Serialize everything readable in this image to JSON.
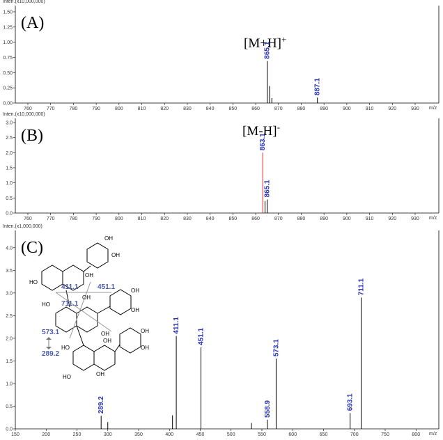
{
  "chart_data": [
    {
      "type": "spectrum",
      "panel_label": "(A)",
      "annotation": {
        "text": "[M+H]",
        "sup": "+"
      },
      "y_axis_label": "Inten.(x10,000,000)",
      "x_axis_label": "m/z",
      "x": [
        865.1,
        866.1,
        867.1,
        887.1
      ],
      "values": [
        0.69,
        0.28,
        0.08,
        0.09
      ],
      "colors": [
        "#000000",
        "#000000",
        "#000000",
        "#000000"
      ],
      "labeled": [
        true,
        false,
        false,
        true
      ],
      "xlim": [
        754.5,
        940.4
      ],
      "ylim": [
        0,
        1.58
      ],
      "xticks": [
        760,
        770,
        780,
        790,
        800,
        810,
        820,
        830,
        840,
        850,
        860,
        870,
        880,
        890,
        900,
        910,
        920,
        930
      ],
      "yticks": [
        {
          "value": 0,
          "label": "0.00"
        },
        0.25,
        {
          "value": 0.5,
          "label": "0.50"
        },
        0.75,
        {
          "value": 1,
          "label": "1.00"
        },
        1.25,
        {
          "value": 1.5,
          "label": "1.50"
        }
      ]
    },
    {
      "type": "spectrum",
      "panel_label": "(B)",
      "annotation": {
        "text": "[M-H]",
        "sup": "-"
      },
      "y_axis_label": "Inten.(x10,000,000)",
      "x_axis_label": "m/z",
      "x": [
        863.1,
        864.1,
        865.1
      ],
      "values": [
        2.0,
        0.4,
        0.45
      ],
      "colors": [
        "#e03030",
        "#000000",
        "#000000"
      ],
      "labeled": [
        true,
        false,
        true
      ],
      "xlim": [
        754.5,
        940.4
      ],
      "ylim": [
        0,
        3.09
      ],
      "xticks": [
        760,
        770,
        780,
        790,
        800,
        810,
        820,
        830,
        840,
        850,
        860,
        870,
        880,
        890,
        900,
        910,
        920,
        930
      ],
      "yticks": [
        {
          "value": 0,
          "label": "0.0"
        },
        0.5,
        {
          "value": 1,
          "label": "1.0"
        },
        1.5,
        {
          "value": 2,
          "label": "2.0"
        },
        2.5,
        {
          "value": 3,
          "label": "3.0"
        }
      ]
    },
    {
      "type": "spectrum",
      "panel_label": "(C)",
      "y_axis_label": "Inten.(x1,000,000)",
      "x_axis_label": "m/z",
      "x": [
        289.2,
        300,
        405,
        411.1,
        451.1,
        533,
        558.9,
        573.1,
        693.1,
        711.1
      ],
      "values": [
        0.29,
        0.15,
        0.3,
        2.05,
        1.8,
        0.13,
        0.2,
        1.55,
        0.35,
        2.9
      ],
      "colors": [
        "#000000",
        "#000000",
        "#000000",
        "#000000",
        "#000000",
        "#000000",
        "#000000",
        "#000000",
        "#000000",
        "#000000"
      ],
      "labeled": [
        true,
        false,
        false,
        true,
        true,
        false,
        true,
        true,
        true,
        true
      ],
      "xlim": [
        150,
        837
      ],
      "ylim": [
        0,
        4.35
      ],
      "xticks": [
        150,
        200,
        250,
        300,
        350,
        400,
        450,
        500,
        550,
        600,
        650,
        700,
        750,
        800
      ],
      "yticks": [
        {
          "value": 0,
          "label": "0.0"
        },
        0.5,
        {
          "value": 1,
          "label": "1.0"
        },
        1.5,
        {
          "value": 2,
          "label": "2.0"
        },
        2.5,
        {
          "value": 3,
          "label": "3.0"
        },
        3.5,
        {
          "value": 4,
          "label": "4.0"
        }
      ],
      "structure": {
        "fragments": [
          "411.1",
          "451.1",
          "711.1",
          "573.1",
          "289.2"
        ],
        "groups": [
          "OH",
          "OH",
          "HO",
          "OH",
          "HO",
          "OH",
          "OH",
          "OH",
          "OH",
          "HO",
          "OH",
          "OH",
          "OH",
          "HO",
          "OH"
        ]
      }
    }
  ]
}
